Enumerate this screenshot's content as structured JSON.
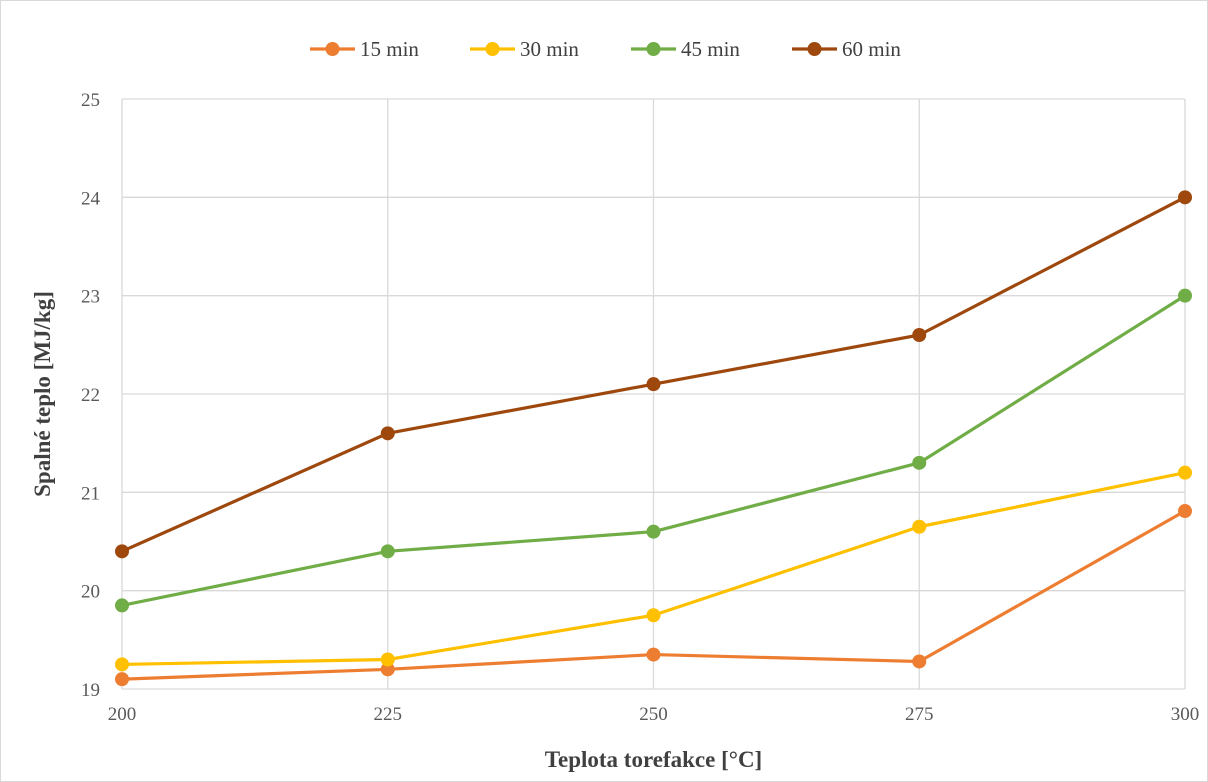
{
  "chart_data": {
    "type": "line",
    "xlabel": "Teplota torefakce [°C]",
    "ylabel": "Spalné teplo [MJ/kg]",
    "x": [
      200,
      225,
      250,
      275,
      300
    ],
    "x_tick_labels": [
      "200",
      "225",
      "250",
      "275",
      "300"
    ],
    "ylim": [
      19,
      25
    ],
    "y_tick_labels": [
      "19",
      "20",
      "21",
      "22",
      "23",
      "24",
      "25"
    ],
    "grid": true,
    "legend_position": "top",
    "series": [
      {
        "name": "15 min",
        "color": "#ED7D31",
        "values": [
          19.1,
          19.2,
          19.35,
          19.28,
          20.81
        ]
      },
      {
        "name": "30 min",
        "color": "#FFC000",
        "values": [
          19.25,
          19.3,
          19.75,
          20.65,
          21.2
        ]
      },
      {
        "name": "45 min",
        "color": "#70AD47",
        "values": [
          19.85,
          20.4,
          20.6,
          21.3,
          23.0
        ]
      },
      {
        "name": "60 min",
        "color": "#9E480E",
        "values": [
          20.4,
          21.6,
          22.1,
          22.6,
          24.0
        ]
      }
    ]
  }
}
